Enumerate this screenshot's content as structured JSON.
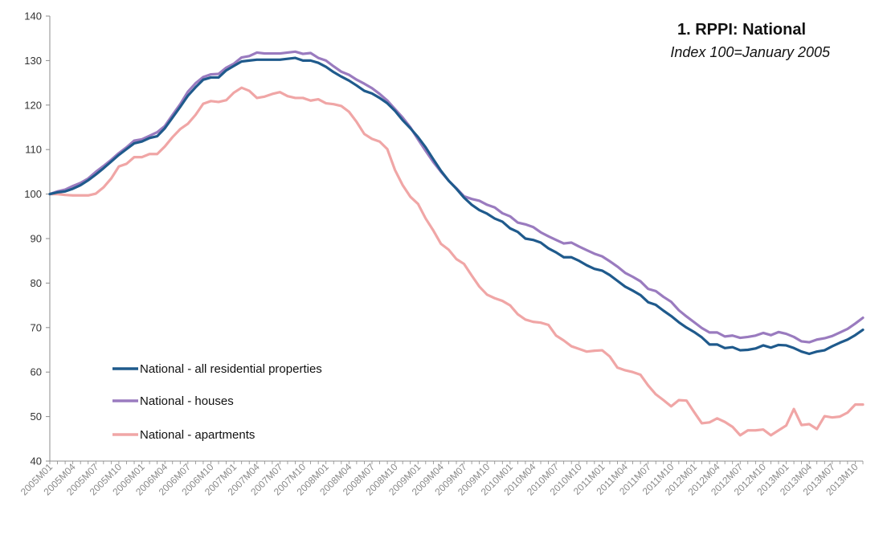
{
  "chart_data": {
    "type": "line",
    "title": "1. RPPI: National",
    "subtitle": "Index 100=January 2005",
    "xlabel": "",
    "ylabel": "",
    "ylim": [
      40,
      140
    ],
    "yticks": [
      40,
      50,
      60,
      70,
      80,
      90,
      100,
      110,
      120,
      130,
      140
    ],
    "grid": false,
    "legend_position": "lower-left",
    "xtick_labels": [
      "2005M01",
      "2005M04",
      "2005M07",
      "2005M10",
      "2006M01",
      "2006M04",
      "2006M07",
      "2006M10",
      "2007M01",
      "2007M04",
      "2007M07",
      "2007M10",
      "2008M01",
      "2008M04",
      "2008M07",
      "2008M10",
      "2009M01",
      "2009M04",
      "2009M07",
      "2009M10",
      "2010M01",
      "2010M04",
      "2010M07",
      "2010M10",
      "2011M01",
      "2011M04",
      "2011M07",
      "2011M10",
      "2012M01",
      "2012M04",
      "2012M07",
      "2012M10",
      "2013M01",
      "2013M04",
      "2013M07",
      "2013M10"
    ],
    "x_start": "2005M01",
    "x_end": "2013M10",
    "series": [
      {
        "name": "National - all residential properties",
        "color": "#1f5a8c",
        "values": [
          100.0,
          100.4,
          100.6,
          101.2,
          102.0,
          103.1,
          104.4,
          105.8,
          107.3,
          108.8,
          110.1,
          111.4,
          111.8,
          112.6,
          113.0,
          114.8,
          117.2,
          119.6,
          122.1,
          124.0,
          125.7,
          126.2,
          126.2,
          127.8,
          128.8,
          129.8,
          130.0,
          130.2,
          130.2,
          130.2,
          130.2,
          130.4,
          130.6,
          130.0,
          130.0,
          129.5,
          128.6,
          127.4,
          126.4,
          125.5,
          124.4,
          123.2,
          122.6,
          121.6,
          120.4,
          118.7,
          116.6,
          114.8,
          112.8,
          110.5,
          107.8,
          105.2,
          103.0,
          101.2,
          99.2,
          97.6,
          96.4,
          95.6,
          94.5,
          93.8,
          92.3,
          91.5,
          90.0,
          89.7,
          89.1,
          87.8,
          86.9,
          85.8,
          85.8,
          85.0,
          84.0,
          83.2,
          82.8,
          81.8,
          80.5,
          79.2,
          78.3,
          77.3,
          75.7,
          75.1,
          73.8,
          72.6,
          71.2,
          70.0,
          69.0,
          67.8,
          66.2,
          66.2,
          65.4,
          65.6,
          64.9,
          65.0,
          65.3,
          66.0,
          65.5,
          66.1,
          66.0,
          65.4,
          64.6,
          64.1,
          64.6,
          64.9,
          65.8,
          66.6,
          67.3,
          68.3,
          69.5
        ]
      },
      {
        "name": "National - houses",
        "color": "#9a7bbf",
        "values": [
          100.0,
          100.6,
          101.0,
          101.8,
          102.5,
          103.5,
          105.0,
          106.3,
          107.7,
          109.2,
          110.5,
          112.0,
          112.3,
          113.1,
          113.9,
          115.3,
          117.8,
          120.2,
          123.0,
          124.9,
          126.3,
          126.9,
          127.0,
          128.4,
          129.3,
          130.7,
          131.0,
          131.8,
          131.6,
          131.6,
          131.6,
          131.8,
          132.0,
          131.5,
          131.7,
          130.6,
          130.0,
          128.7,
          127.5,
          126.8,
          125.7,
          124.8,
          123.8,
          122.5,
          121.0,
          119.1,
          117.2,
          115.0,
          112.3,
          109.7,
          107.2,
          105.0,
          103.0,
          101.3,
          99.5,
          98.9,
          98.5,
          97.6,
          97.0,
          95.7,
          95.0,
          93.6,
          93.2,
          92.6,
          91.4,
          90.5,
          89.7,
          88.9,
          89.1,
          88.2,
          87.4,
          86.6,
          86.0,
          84.9,
          83.7,
          82.3,
          81.4,
          80.4,
          78.7,
          78.2,
          76.9,
          75.8,
          73.9,
          72.5,
          71.2,
          69.9,
          68.9,
          68.9,
          68.0,
          68.2,
          67.7,
          67.9,
          68.2,
          68.8,
          68.3,
          69.0,
          68.6,
          67.9,
          66.9,
          66.7,
          67.3,
          67.6,
          68.1,
          68.9,
          69.7,
          70.9,
          72.2
        ]
      },
      {
        "name": "National - apartments",
        "color": "#f0a6a6",
        "values": [
          100.0,
          100.0,
          99.8,
          99.7,
          99.7,
          99.7,
          100.1,
          101.5,
          103.5,
          106.2,
          106.8,
          108.3,
          108.3,
          109.0,
          109.0,
          110.7,
          112.8,
          114.6,
          115.8,
          117.8,
          120.3,
          120.9,
          120.7,
          121.1,
          122.8,
          123.9,
          123.2,
          121.6,
          121.9,
          122.5,
          122.9,
          122.0,
          121.6,
          121.6,
          121.0,
          121.3,
          120.4,
          120.2,
          119.8,
          118.5,
          116.2,
          113.5,
          112.4,
          111.8,
          110.1,
          105.4,
          102.0,
          99.4,
          97.8,
          94.5,
          91.8,
          88.8,
          87.5,
          85.4,
          84.3,
          81.7,
          79.2,
          77.4,
          76.6,
          76.0,
          75.0,
          73.0,
          71.8,
          71.3,
          71.1,
          70.6,
          68.2,
          67.1,
          65.8,
          65.2,
          64.6,
          64.8,
          64.9,
          63.5,
          61.0,
          60.4,
          60.0,
          59.4,
          57.0,
          55.0,
          53.7,
          52.3,
          53.7,
          53.6,
          51.0,
          48.5,
          48.7,
          49.6,
          48.8,
          47.7,
          45.8,
          46.9,
          46.9,
          47.1,
          45.8,
          46.9,
          48.0,
          51.7,
          48.1,
          48.3,
          47.2,
          50.1,
          49.8,
          50.0,
          50.9,
          52.7,
          52.7
        ]
      }
    ]
  }
}
